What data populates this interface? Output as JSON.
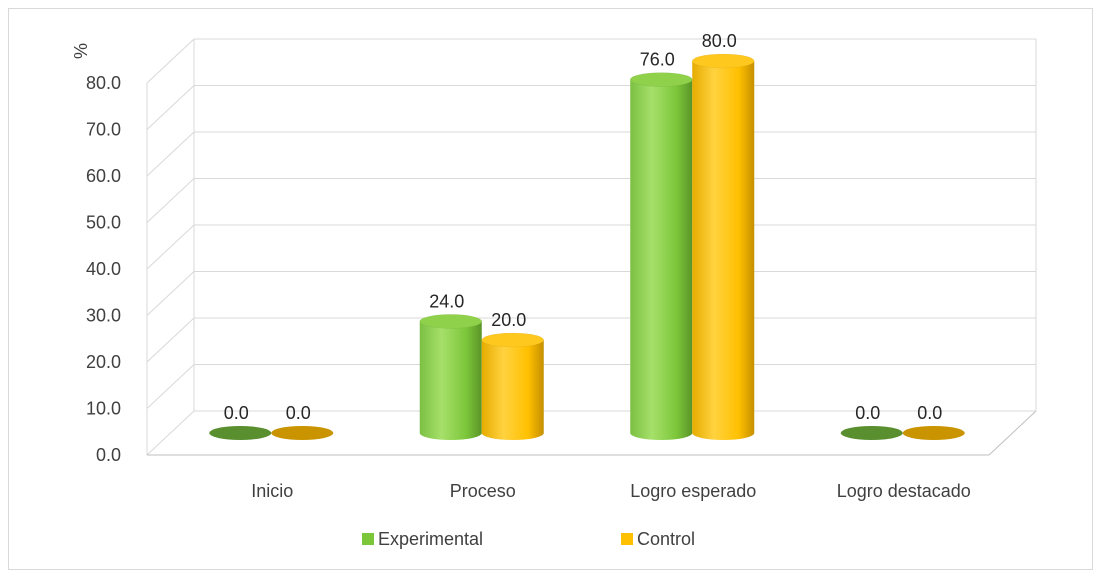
{
  "chart_data": {
    "type": "bar",
    "style": "3d-cylinder",
    "ylabel": "%",
    "xlabel": "",
    "title": "",
    "ylim": [
      0,
      80
    ],
    "y_ticks": [
      "0.0",
      "10.0",
      "20.0",
      "30.0",
      "40.0",
      "50.0",
      "60.0",
      "70.0",
      "80.0"
    ],
    "grid": true,
    "legend_position": "bottom",
    "categories": [
      "Inicio",
      "Proceso",
      "Logro esperado",
      "Logro destacado"
    ],
    "series": [
      {
        "name": "Experimental",
        "color": "#7cc63a",
        "values": [
          0.0,
          24.0,
          76.0,
          0.0
        ],
        "labels": [
          "0.0",
          "24.0",
          "76.0",
          "0.0"
        ]
      },
      {
        "name": "Control",
        "color": "#ffc000",
        "values": [
          0.0,
          20.0,
          80.0,
          0.0
        ],
        "labels": [
          "0.0",
          "20.0",
          "80.0",
          "0.0"
        ]
      }
    ]
  }
}
